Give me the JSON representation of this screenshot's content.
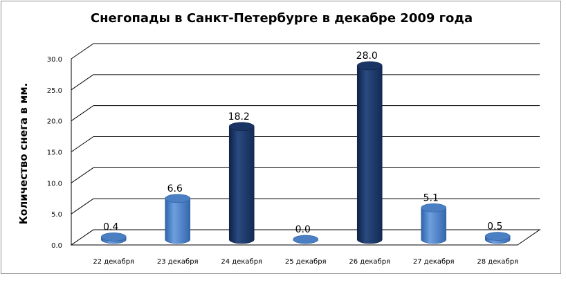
{
  "chart_data": {
    "type": "bar",
    "title": "Снегопады в Санкт-Петербурге в декабре 2009 года",
    "ylabel": "Количество снега в мм.",
    "xlabel": "",
    "categories": [
      "22 декабря",
      "23 декабря",
      "24 декабря",
      "25 декабря",
      "26 декабря",
      "27 декабря",
      "28 декабря"
    ],
    "values": [
      0.4,
      6.6,
      18.2,
      0.0,
      28.0,
      5.1,
      0.5
    ],
    "value_labels": [
      "0.4",
      "6.6",
      "18.2",
      "0.0",
      "28.0",
      "5.1",
      "0.5"
    ],
    "ylim": [
      0,
      30
    ],
    "y_ticks": [
      "0.0",
      "5.0",
      "10.0",
      "15.0",
      "20.0",
      "25.0",
      "30.0"
    ],
    "grid": true,
    "bar_shape": "cylinder",
    "colors": {
      "light_bar": "#4a7fc4",
      "light_bar_edge": "#2f5f9e",
      "dark_bar": "#1a3564",
      "dark_bar_edge": "#0f2247",
      "grid": "#000000"
    },
    "dark_categories": [
      "24 декабря",
      "26 декабря"
    ]
  }
}
